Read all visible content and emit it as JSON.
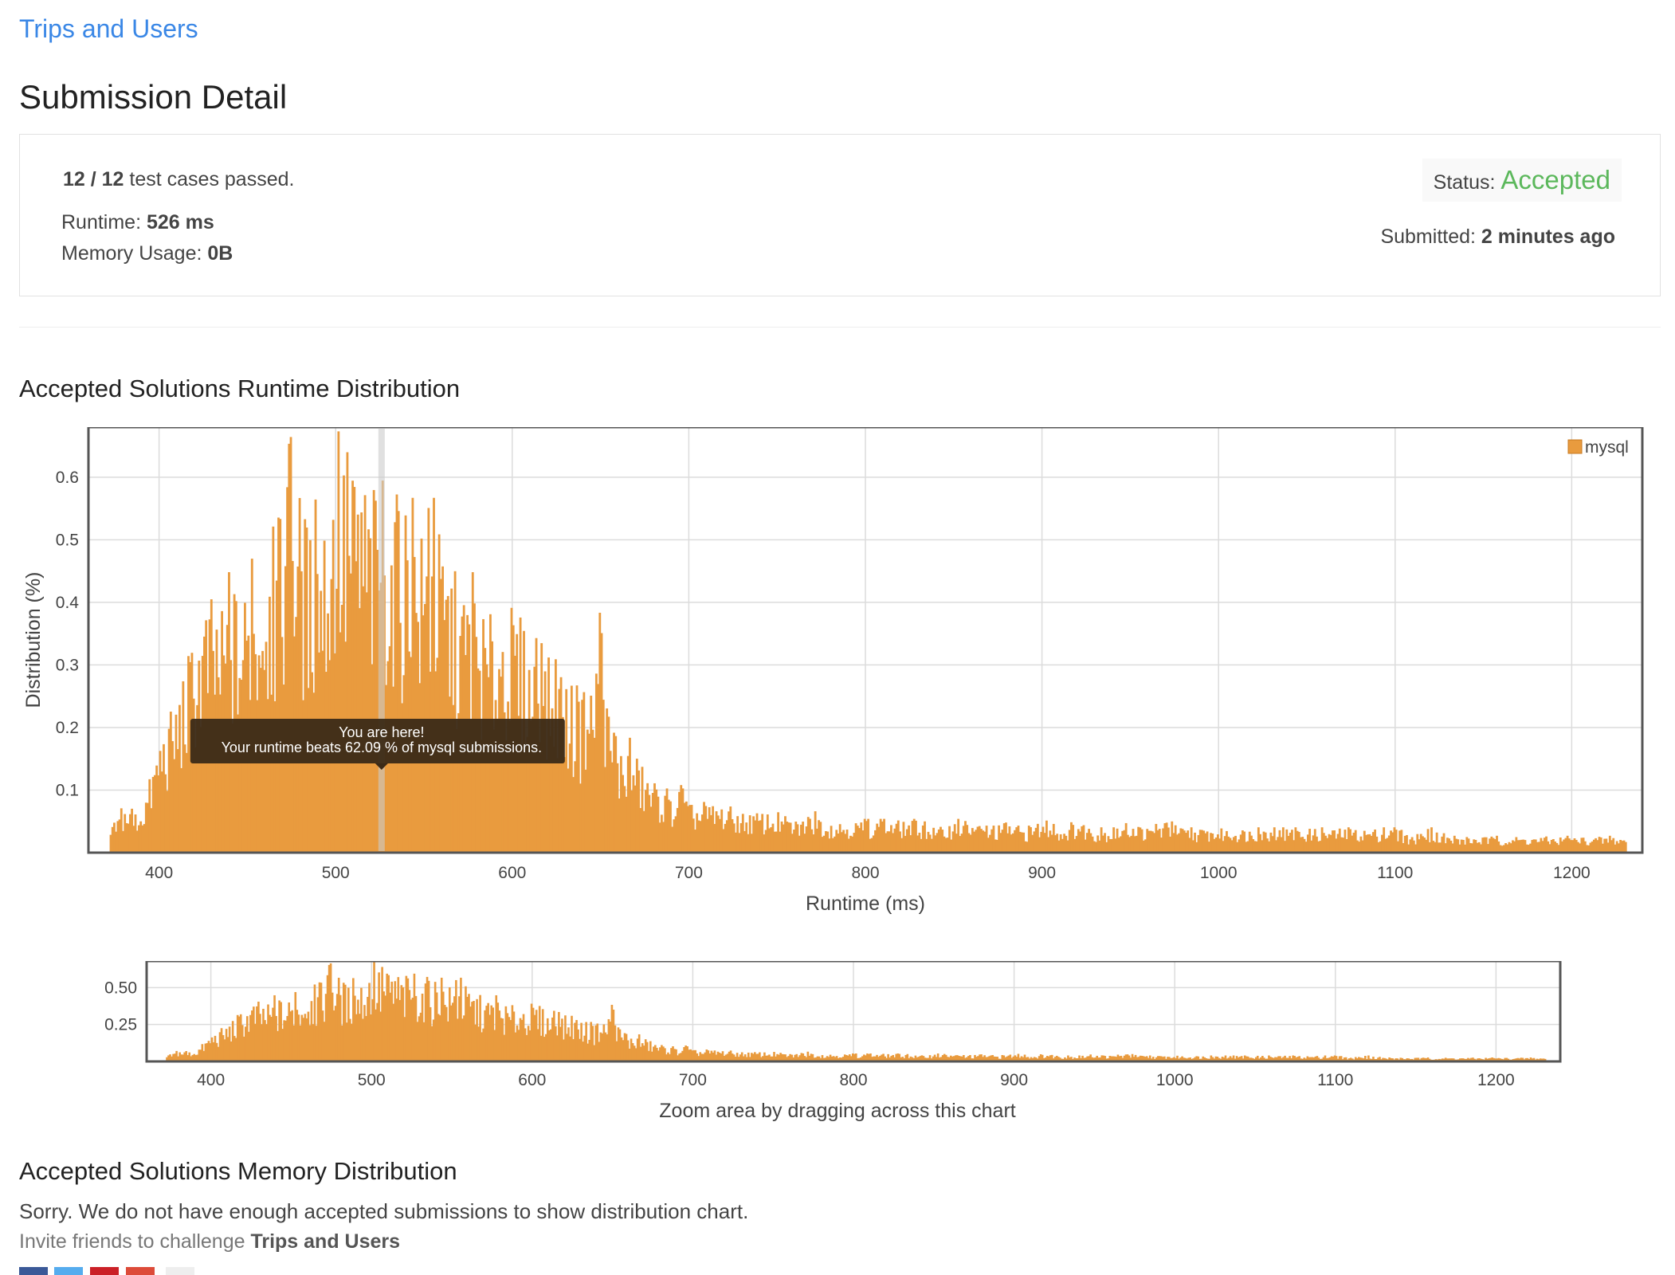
{
  "problem": {
    "link_text": "Trips and Users"
  },
  "page": {
    "title": "Submission Detail"
  },
  "summary": {
    "passed": "12 / 12",
    "passed_suffix": " test cases passed.",
    "runtime_label": "Runtime: ",
    "runtime_value": "526 ms",
    "memory_label": "Memory Usage: ",
    "memory_value": "0B",
    "status_label": "Status: ",
    "status_value": "Accepted",
    "submitted_label": "Submitted: ",
    "submitted_value": "2 minutes ago",
    "status_color": "#5cb85c"
  },
  "runtime_section": {
    "title": "Accepted Solutions Runtime Distribution"
  },
  "memory_section": {
    "title": "Accepted Solutions Memory Distribution",
    "message": "Sorry. We do not have enough accepted submissions to show distribution chart.",
    "invite_prefix": "Invite friends to challenge ",
    "invite_problem": "Trips and Users"
  },
  "share_colors": [
    "#3b5998",
    "#55acee",
    "#cb2027",
    "#dd4b39",
    "#eeeeee"
  ],
  "chart_data": [
    {
      "type": "bar",
      "xlabel": "Runtime (ms)",
      "ylabel": "Distribution (%)",
      "xlim": [
        360,
        1240
      ],
      "ylim": [
        0,
        0.68
      ],
      "xticks": [
        400,
        500,
        600,
        700,
        800,
        900,
        1000,
        1100,
        1200
      ],
      "yticks": [
        0.1,
        0.2,
        0.3,
        0.4,
        0.5,
        0.6
      ],
      "grid": true,
      "legend": "top-right",
      "color": "#e99b3e",
      "series": [
        {
          "name": "mysql",
          "x": [
            372,
            380,
            385,
            390,
            395,
            400,
            405,
            410,
            415,
            420,
            425,
            430,
            435,
            440,
            445,
            450,
            455,
            460,
            465,
            470,
            475,
            480,
            485,
            490,
            495,
            500,
            505,
            510,
            515,
            520,
            525,
            530,
            535,
            540,
            545,
            550,
            555,
            560,
            565,
            570,
            575,
            580,
            585,
            590,
            595,
            600,
            605,
            610,
            615,
            620,
            625,
            630,
            635,
            640,
            645,
            650,
            655,
            660,
            665,
            670,
            675,
            680,
            685,
            690,
            695,
            700,
            710,
            720,
            730,
            740,
            750,
            760,
            770,
            780,
            790,
            800,
            810,
            820,
            830,
            840,
            850,
            860,
            870,
            880,
            890,
            900,
            910,
            920,
            930,
            940,
            950,
            960,
            970,
            980,
            990,
            1000,
            1010,
            1020,
            1030,
            1040,
            1050,
            1060,
            1070,
            1080,
            1090,
            1100,
            1110,
            1120,
            1130,
            1140,
            1150,
            1160,
            1170,
            1180,
            1190,
            1200,
            1210,
            1220,
            1230
          ],
          "values": [
            0.03,
            0.06,
            0.05,
            0.06,
            0.1,
            0.15,
            0.17,
            0.2,
            0.24,
            0.28,
            0.31,
            0.32,
            0.3,
            0.34,
            0.32,
            0.34,
            0.36,
            0.41,
            0.38,
            0.46,
            0.5,
            0.44,
            0.4,
            0.43,
            0.44,
            0.53,
            0.47,
            0.49,
            0.48,
            0.44,
            0.51,
            0.44,
            0.42,
            0.45,
            0.4,
            0.4,
            0.42,
            0.38,
            0.36,
            0.33,
            0.34,
            0.32,
            0.29,
            0.3,
            0.32,
            0.3,
            0.29,
            0.26,
            0.25,
            0.24,
            0.26,
            0.22,
            0.2,
            0.19,
            0.22,
            0.3,
            0.15,
            0.13,
            0.14,
            0.12,
            0.1,
            0.09,
            0.08,
            0.07,
            0.08,
            0.06,
            0.06,
            0.06,
            0.05,
            0.05,
            0.05,
            0.04,
            0.05,
            0.04,
            0.04,
            0.04,
            0.04,
            0.04,
            0.04,
            0.03,
            0.04,
            0.04,
            0.03,
            0.04,
            0.03,
            0.04,
            0.03,
            0.04,
            0.03,
            0.03,
            0.04,
            0.03,
            0.04,
            0.03,
            0.03,
            0.03,
            0.03,
            0.03,
            0.03,
            0.03,
            0.03,
            0.03,
            0.03,
            0.03,
            0.03,
            0.03,
            0.02,
            0.03,
            0.02,
            0.02,
            0.02,
            0.02,
            0.02,
            0.02,
            0.02,
            0.02,
            0.02,
            0.02,
            0.02
          ]
        }
      ],
      "annotation": {
        "x": 526,
        "line1": "You are here!",
        "line2": "Your runtime beats 62.09 % of mysql submissions."
      }
    },
    {
      "type": "bar",
      "xlabel": "Zoom area by dragging across this chart",
      "xlim": [
        360,
        1240
      ],
      "ylim": [
        0,
        0.68
      ],
      "xticks": [
        400,
        500,
        600,
        700,
        800,
        900,
        1000,
        1100,
        1200
      ],
      "yticks": [
        0.25,
        0.5
      ],
      "ytick_labels": [
        "0.25",
        "0.50"
      ],
      "grid": true,
      "color": "#e99b3e"
    }
  ]
}
